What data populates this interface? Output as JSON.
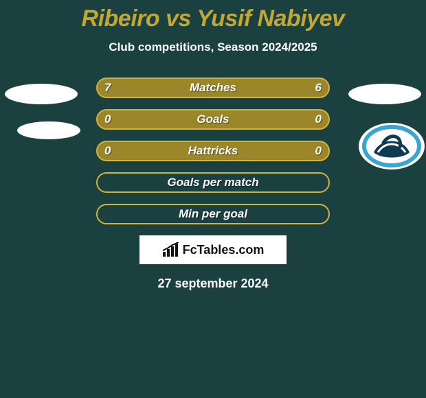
{
  "title": "Ribeiro vs Yusif Nabiyev",
  "subtitle": "Club competitions, Season 2024/2025",
  "date": "27 september 2024",
  "brand": "FcTables.com",
  "colors": {
    "background": "#1a4040",
    "accent": "#c4a730",
    "row_fill": "#9b8629",
    "row_border": "#d0b440",
    "empty_fill": "transparent",
    "empty_border": "#d0b440",
    "text": "#ffffff",
    "club_blue": "#3aa5d0",
    "club_dark": "#0f3a52"
  },
  "rows": [
    {
      "label": "Matches",
      "left": "7",
      "right": "6",
      "filled": true
    },
    {
      "label": "Goals",
      "left": "0",
      "right": "0",
      "filled": true
    },
    {
      "label": "Hattricks",
      "left": "0",
      "right": "0",
      "filled": true
    },
    {
      "label": "Goals per match",
      "left": "",
      "right": "",
      "filled": false
    },
    {
      "label": "Min per goal",
      "left": "",
      "right": "",
      "filled": false
    }
  ]
}
